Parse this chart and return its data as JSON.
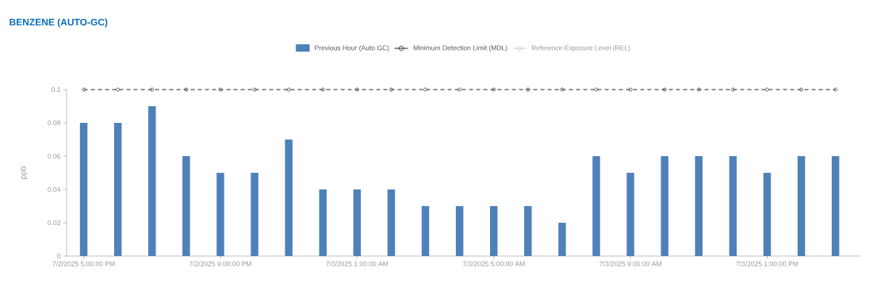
{
  "chart_data": {
    "type": "bar",
    "title": "BENZENE (AUTO-GC)",
    "ylabel": "ppb",
    "categories": [
      "7/2/2025 5:00:00 PM",
      null,
      null,
      null,
      "7/2/2025 9:00:00 PM",
      null,
      null,
      null,
      "7/3/2025 1:00:00 AM",
      null,
      null,
      null,
      "7/3/2025 5:00:00 AM",
      null,
      null,
      null,
      "7/3/2025 9:00:00 AM",
      null,
      null,
      null,
      "7/3/2025 1:00:00 PM",
      null,
      null
    ],
    "series": [
      {
        "name": "Previous Hour (Auto GC)",
        "color": "#4f81b9",
        "values": [
          0.08,
          0.08,
          0.09,
          0.06,
          0.05,
          0.05,
          0.07,
          0.04,
          0.04,
          0.04,
          0.03,
          0.03,
          0.03,
          0.03,
          0.02,
          0.06,
          0.05,
          0.06,
          0.06,
          0.06,
          0.05,
          0.06,
          0.06
        ]
      },
      {
        "name": "Minimum Detection Limit (MDL)",
        "type": "line",
        "color": "#222222",
        "marker": "circle",
        "line_style": "dashed",
        "values": [
          0.1,
          0.1,
          0.1,
          0.1,
          0.1,
          0.1,
          0.1,
          0.1,
          0.1,
          0.1,
          0.1,
          0.1,
          0.1,
          0.1,
          0.1,
          0.1,
          0.1,
          0.1,
          0.1,
          0.1,
          0.1,
          0.1,
          0.1
        ]
      },
      {
        "name": "Reference Exposure Level (REL)",
        "type": "line",
        "color": "#c8c8c8",
        "marker": "circle",
        "values": [
          null,
          null,
          null,
          null,
          null,
          null,
          null,
          null,
          null,
          null,
          null,
          null,
          null,
          null,
          null,
          null,
          null,
          null,
          null,
          null,
          null,
          null,
          null
        ]
      }
    ],
    "ylim": [
      0,
      0.1
    ],
    "yticks": [
      0,
      0.02,
      0.04,
      0.06,
      0.08,
      0.1
    ],
    "grid": false,
    "legend": "top"
  }
}
